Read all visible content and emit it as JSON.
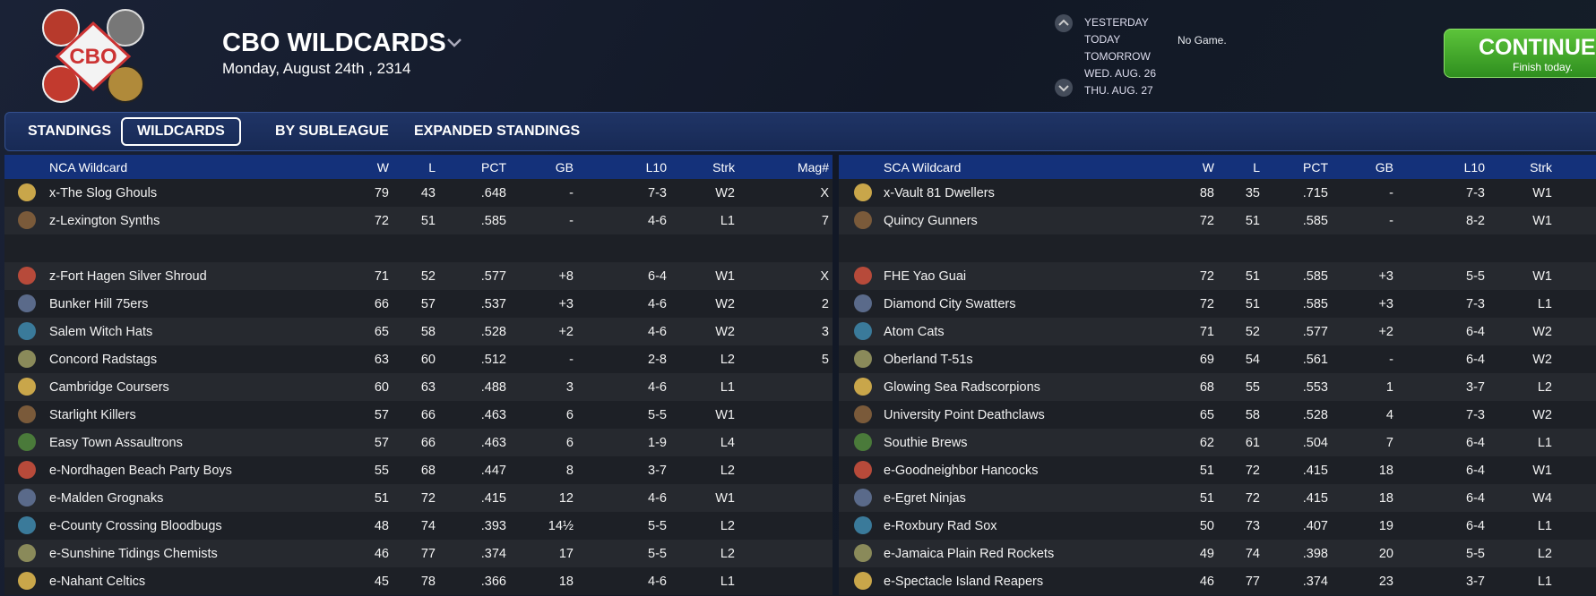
{
  "header": {
    "title": "CBO WILDCARDS",
    "date": "Monday, August 24th , 2314"
  },
  "schedule": {
    "days": [
      "YESTERDAY",
      "TODAY",
      "TOMORROW",
      "WED. AUG. 26",
      "THU. AUG. 27"
    ],
    "status": "No Game."
  },
  "continue": {
    "label": "CONTINUE",
    "sub": "Finish today."
  },
  "tabs": [
    "STANDINGS",
    "WILDCARDS",
    "BY SUBLEAGUE",
    "EXPANDED STANDINGS"
  ],
  "tables": [
    {
      "columns": [
        "NCA  Wildcard",
        "W",
        "L",
        "PCT",
        "GB",
        "L10",
        "Strk",
        "Mag#"
      ],
      "leaders": [
        [
          "x-The Slog Ghouls",
          "79",
          "43",
          ".648",
          "-",
          "7-3",
          "W2",
          "X"
        ],
        [
          "z-Lexington Synths",
          "72",
          "51",
          ".585",
          "-",
          "4-6",
          "L1",
          "7"
        ]
      ],
      "rows": [
        [
          "z-Fort Hagen Silver Shroud",
          "71",
          "52",
          ".577",
          "+8",
          "6-4",
          "W1",
          "X"
        ],
        [
          "Bunker Hill 75ers",
          "66",
          "57",
          ".537",
          "+3",
          "4-6",
          "W2",
          "2"
        ],
        [
          "Salem Witch Hats",
          "65",
          "58",
          ".528",
          "+2",
          "4-6",
          "W2",
          "3"
        ],
        [
          "Concord Radstags",
          "63",
          "60",
          ".512",
          "-",
          "2-8",
          "L2",
          "5"
        ],
        [
          "Cambridge Coursers",
          "60",
          "63",
          ".488",
          "3",
          "4-6",
          "L1",
          null
        ],
        [
          "Starlight Killers",
          "57",
          "66",
          ".463",
          "6",
          "5-5",
          "W1",
          null
        ],
        [
          "Easy Town Assaultrons",
          "57",
          "66",
          ".463",
          "6",
          "1-9",
          "L4",
          null
        ],
        [
          "e-Nordhagen Beach Party Boys",
          "55",
          "68",
          ".447",
          "8",
          "3-7",
          "L2",
          null
        ],
        [
          "e-Malden Grognaks",
          "51",
          "72",
          ".415",
          "12",
          "4-6",
          "W1",
          null
        ],
        [
          "e-County Crossing Bloodbugs",
          "48",
          "74",
          ".393",
          "14½",
          "5-5",
          "L2",
          null
        ],
        [
          "e-Sunshine Tidings Chemists",
          "46",
          "77",
          ".374",
          "17",
          "5-5",
          "L2",
          null
        ],
        [
          "e-Nahant Celtics",
          "45",
          "78",
          ".366",
          "18",
          "4-6",
          "L1",
          null
        ]
      ]
    },
    {
      "columns": [
        "SCA  Wildcard",
        "W",
        "L",
        "PCT",
        "GB",
        "L10",
        "Strk"
      ],
      "leaders": [
        [
          "x-Vault 81 Dwellers",
          "88",
          "35",
          ".715",
          "-",
          "7-3",
          "W1"
        ],
        [
          "Quincy Gunners",
          "72",
          "51",
          ".585",
          "-",
          "8-2",
          "W1"
        ]
      ],
      "rows": [
        [
          "FHE Yao Guai",
          "72",
          "51",
          ".585",
          "+3",
          "5-5",
          "W1"
        ],
        [
          "Diamond City Swatters",
          "72",
          "51",
          ".585",
          "+3",
          "7-3",
          "L1"
        ],
        [
          "Atom Cats",
          "71",
          "52",
          ".577",
          "+2",
          "6-4",
          "W2"
        ],
        [
          "Oberland T-51s",
          "69",
          "54",
          ".561",
          "-",
          "6-4",
          "W2"
        ],
        [
          "Glowing Sea Radscorpions",
          "68",
          "55",
          ".553",
          "1",
          "3-7",
          "L2"
        ],
        [
          "University Point Deathclaws",
          "65",
          "58",
          ".528",
          "4",
          "7-3",
          "W2"
        ],
        [
          "Southie Brews",
          "62",
          "61",
          ".504",
          "7",
          "6-4",
          "L1"
        ],
        [
          "e-Goodneighbor Hancocks",
          "51",
          "72",
          ".415",
          "18",
          "6-4",
          "W1"
        ],
        [
          "e-Egret Ninjas",
          "51",
          "72",
          ".415",
          "18",
          "6-4",
          "W4"
        ],
        [
          "e-Roxbury Rad Sox",
          "50",
          "73",
          ".407",
          "19",
          "6-4",
          "L1"
        ],
        [
          "e-Jamaica Plain Red Rockets",
          "49",
          "74",
          ".398",
          "20",
          "5-5",
          "L2"
        ],
        [
          "e-Spectacle Island Reapers",
          "46",
          "77",
          ".374",
          "23",
          "3-7",
          "L1"
        ]
      ]
    }
  ]
}
